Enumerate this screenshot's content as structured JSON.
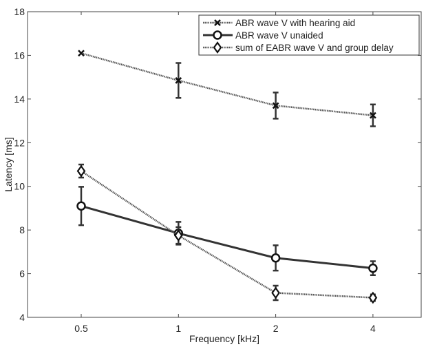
{
  "chart_data": {
    "type": "line",
    "title": "",
    "xlabel": "Frequency [kHz]",
    "ylabel": "Latency [ms]",
    "categories": [
      "0.5",
      "1",
      "2",
      "4"
    ],
    "ylim": [
      4,
      18
    ],
    "yticks": [
      4,
      6,
      8,
      10,
      12,
      14,
      16,
      18
    ],
    "legend_position": "top-right",
    "series": [
      {
        "name": "ABR wave V with hearing aid",
        "marker": "x",
        "style": "dotted",
        "values": [
          16.1,
          14.85,
          13.7,
          13.25
        ],
        "errors": [
          0.05,
          0.8,
          0.6,
          0.5
        ]
      },
      {
        "name": "ABR wave V unaided",
        "marker": "circle",
        "style": "solid",
        "values": [
          9.1,
          7.85,
          6.72,
          6.25
        ],
        "errors": [
          0.88,
          0.52,
          0.58,
          0.32
        ]
      },
      {
        "name": "sum of EABR wave V and group delay",
        "marker": "diamond",
        "style": "dotted",
        "values": [
          10.7,
          7.75,
          5.12,
          4.9
        ],
        "errors": [
          0.3,
          0.38,
          0.33,
          0.15
        ]
      }
    ]
  }
}
